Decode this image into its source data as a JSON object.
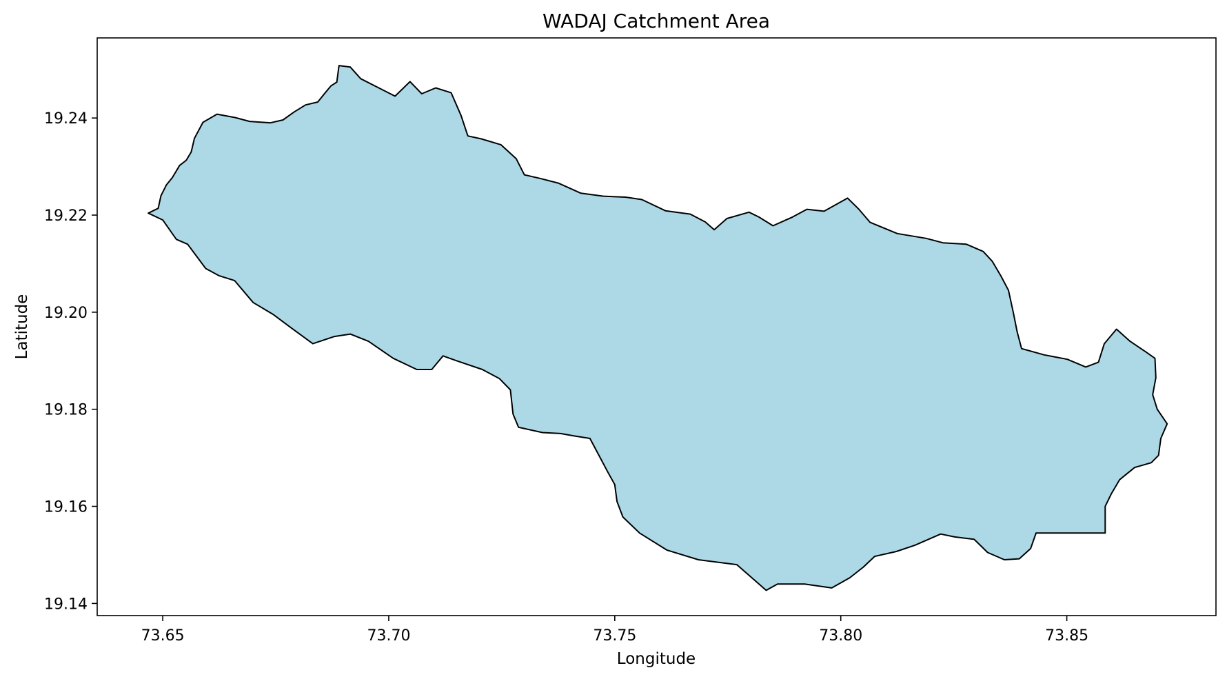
{
  "title": "WADAJ Catchment Area",
  "xlabel": "Longitude",
  "ylabel": "Latitude",
  "chart_data": {
    "type": "map",
    "title": "WADAJ Catchment Area",
    "xlabel": "Longitude",
    "ylabel": "Latitude",
    "xlim": [
      73.6355,
      73.883
    ],
    "ylim": [
      19.1375,
      19.2565
    ],
    "xticks": [
      "73.65",
      "73.70",
      "73.75",
      "73.80",
      "73.85"
    ],
    "yticks": [
      "19.14",
      "19.16",
      "19.18",
      "19.20",
      "19.22",
      "19.24"
    ],
    "fill_color": "#add8e6",
    "edge_color": "#000000",
    "grid": false,
    "legend": false,
    "boundary": [
      [
        73.6468,
        19.2204
      ],
      [
        73.649,
        19.2214
      ],
      [
        73.6496,
        19.224
      ],
      [
        73.6508,
        19.2262
      ],
      [
        73.6521,
        19.2277
      ],
      [
        73.6532,
        19.2294
      ],
      [
        73.6537,
        19.2302
      ],
      [
        73.6552,
        19.2313
      ],
      [
        73.6563,
        19.233
      ],
      [
        73.657,
        19.2358
      ],
      [
        73.6589,
        19.2391
      ],
      [
        73.662,
        19.2408
      ],
      [
        73.666,
        19.2401
      ],
      [
        73.6692,
        19.2393
      ],
      [
        73.6738,
        19.239
      ],
      [
        73.6766,
        19.2396
      ],
      [
        73.679,
        19.2412
      ],
      [
        73.6816,
        19.2427
      ],
      [
        73.6843,
        19.2433
      ],
      [
        73.6855,
        19.2447
      ],
      [
        73.6872,
        19.2466
      ],
      [
        73.6885,
        19.2474
      ],
      [
        73.689,
        19.2508
      ],
      [
        73.6915,
        19.2505
      ],
      [
        73.6938,
        19.2481
      ],
      [
        73.6978,
        19.2462
      ],
      [
        73.7014,
        19.2445
      ],
      [
        73.7047,
        19.2475
      ],
      [
        73.7073,
        19.245
      ],
      [
        73.7104,
        19.2462
      ],
      [
        73.7138,
        19.2452
      ],
      [
        73.716,
        19.2405
      ],
      [
        73.7175,
        19.2363
      ],
      [
        73.7205,
        19.2357
      ],
      [
        73.7248,
        19.2345
      ],
      [
        73.7282,
        19.2316
      ],
      [
        73.73,
        19.2283
      ],
      [
        73.7337,
        19.2275
      ],
      [
        73.7375,
        19.2266
      ],
      [
        73.7425,
        19.2245
      ],
      [
        73.7475,
        19.2239
      ],
      [
        73.7524,
        19.2237
      ],
      [
        73.756,
        19.2232
      ],
      [
        73.7612,
        19.2209
      ],
      [
        73.7667,
        19.2202
      ],
      [
        73.77,
        19.2186
      ],
      [
        73.772,
        19.217
      ],
      [
        73.7748,
        19.2193
      ],
      [
        73.7797,
        19.2206
      ],
      [
        73.7819,
        19.2196
      ],
      [
        73.785,
        19.2178
      ],
      [
        73.7893,
        19.2196
      ],
      [
        73.7925,
        19.2212
      ],
      [
        73.7963,
        19.2208
      ],
      [
        73.8015,
        19.2235
      ],
      [
        73.804,
        19.2212
      ],
      [
        73.8065,
        19.2185
      ],
      [
        73.8125,
        19.2162
      ],
      [
        73.8189,
        19.2152
      ],
      [
        73.8226,
        19.2143
      ],
      [
        73.8278,
        19.214
      ],
      [
        73.8315,
        19.2125
      ],
      [
        73.8335,
        19.2105
      ],
      [
        73.8354,
        19.2075
      ],
      [
        73.8371,
        19.2045
      ],
      [
        73.8382,
        19.1998
      ],
      [
        73.839,
        19.196
      ],
      [
        73.84,
        19.1925
      ],
      [
        73.845,
        19.1912
      ],
      [
        73.8501,
        19.1903
      ],
      [
        73.8542,
        19.1887
      ],
      [
        73.857,
        19.1897
      ],
      [
        73.8583,
        19.1935
      ],
      [
        73.861,
        19.1965
      ],
      [
        73.864,
        19.194
      ],
      [
        73.8675,
        19.1918
      ],
      [
        73.8695,
        19.1905
      ],
      [
        73.8697,
        19.1865
      ],
      [
        73.869,
        19.183
      ],
      [
        73.87,
        19.18
      ],
      [
        73.8722,
        19.177
      ],
      [
        73.8708,
        19.174
      ],
      [
        73.8703,
        19.1705
      ],
      [
        73.8687,
        19.169
      ],
      [
        73.865,
        19.168
      ],
      [
        73.8617,
        19.1655
      ],
      [
        73.8598,
        19.1625
      ],
      [
        73.8585,
        19.16
      ],
      [
        73.8585,
        19.1545
      ],
      [
        73.8432,
        19.1545
      ],
      [
        73.842,
        19.1513
      ],
      [
        73.8395,
        19.1492
      ],
      [
        73.8362,
        19.149
      ],
      [
        73.8325,
        19.1505
      ],
      [
        73.8295,
        19.1532
      ],
      [
        73.8252,
        19.1537
      ],
      [
        73.8221,
        19.1543
      ],
      [
        73.8164,
        19.152
      ],
      [
        73.8123,
        19.1507
      ],
      [
        73.8075,
        19.1497
      ],
      [
        73.805,
        19.1475
      ],
      [
        73.802,
        19.1453
      ],
      [
        73.798,
        19.1432
      ],
      [
        73.792,
        19.144
      ],
      [
        73.786,
        19.144
      ],
      [
        73.7835,
        19.1427
      ],
      [
        73.777,
        19.148
      ],
      [
        73.7685,
        19.149
      ],
      [
        73.7615,
        19.151
      ],
      [
        73.7555,
        19.1545
      ],
      [
        73.7518,
        19.1578
      ],
      [
        73.7505,
        19.161
      ],
      [
        73.75,
        19.1645
      ],
      [
        73.7485,
        19.167
      ],
      [
        73.7465,
        19.1705
      ],
      [
        73.7445,
        19.174
      ],
      [
        73.741,
        19.1745
      ],
      [
        73.738,
        19.175
      ],
      [
        73.734,
        19.1752
      ],
      [
        73.7287,
        19.1763
      ],
      [
        73.7275,
        19.179
      ],
      [
        73.7269,
        19.184
      ],
      [
        73.7245,
        19.1863
      ],
      [
        73.7207,
        19.1882
      ],
      [
        73.715,
        19.19
      ],
      [
        73.712,
        19.191
      ],
      [
        73.7095,
        19.1882
      ],
      [
        73.7062,
        19.1882
      ],
      [
        73.701,
        19.1905
      ],
      [
        73.6955,
        19.194
      ],
      [
        73.6915,
        19.1955
      ],
      [
        73.688,
        19.195
      ],
      [
        73.6832,
        19.1935
      ],
      [
        73.6785,
        19.1967
      ],
      [
        73.6745,
        19.1995
      ],
      [
        73.67,
        19.202
      ],
      [
        73.6659,
        19.2065
      ],
      [
        73.6625,
        19.2075
      ],
      [
        73.6595,
        19.209
      ],
      [
        73.6575,
        19.2115
      ],
      [
        73.6555,
        19.214
      ],
      [
        73.653,
        19.215
      ],
      [
        73.65,
        19.219
      ],
      [
        73.6468,
        19.2204
      ]
    ]
  }
}
